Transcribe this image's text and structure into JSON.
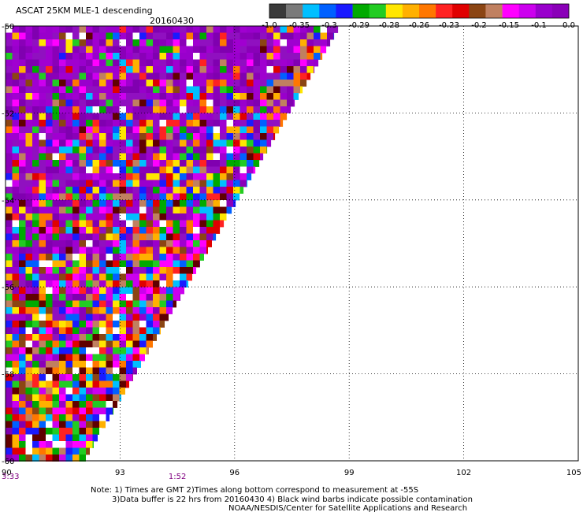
{
  "chart_data": {
    "type": "heatmap",
    "title": "ASCAT 25KM MLE-1 descending",
    "date": "20160430",
    "xlabel": "",
    "ylabel": "",
    "xlim": [
      90,
      105
    ],
    "ylim": [
      -60,
      -50
    ],
    "x_ticks": [
      "90",
      "93",
      "96",
      "99",
      "102",
      "105"
    ],
    "x_tick_values": [
      90,
      93,
      96,
      99,
      102,
      105
    ],
    "y_ticks": [
      "-50",
      "-52",
      "-54",
      "-56",
      "-58",
      "-60"
    ],
    "y_tick_values": [
      -50,
      -52,
      -54,
      -56,
      -58,
      -60
    ],
    "grid": true,
    "grid_style": "dotted",
    "colorbar": {
      "labels": [
        "-1.0",
        "-0.35",
        "-0.3",
        "-0.29",
        "-0.28",
        "-0.26",
        "-0.23",
        "-0.2",
        "-0.15",
        "-0.1",
        "0.0"
      ],
      "colors": [
        "#3a3a3a",
        "#7a7a7a",
        "#00bfff",
        "#0060ff",
        "#1a1aff",
        "#00aa00",
        "#22cc22",
        "#ffe600",
        "#ffb000",
        "#ff7700",
        "#ff2222",
        "#e00000",
        "#8b4513",
        "#c08060",
        "#ff00ff",
        "#cc00ee",
        "#9900cc",
        "#8a00b8"
      ]
    },
    "swath": {
      "edge_top_lon": 98.7,
      "edge_bottom_lon": 92.0,
      "lat_top": -50,
      "lat_bottom": -60
    },
    "time_labels": [
      {
        "lon": 90,
        "text": "3:33"
      },
      {
        "lon": 94.5,
        "text": "1:52"
      }
    ]
  },
  "footer": {
    "note_line1": "Note: 1) Times are GMT 2)Times along bottom correspond to measurement at -55S",
    "note_line2": "3)Data buffer is 22 hrs from 20160430 4) Black wind barbs indicate possible contamination",
    "note_line3": "NOAA/NESDIS/Center for Satellite Applications and Research"
  }
}
